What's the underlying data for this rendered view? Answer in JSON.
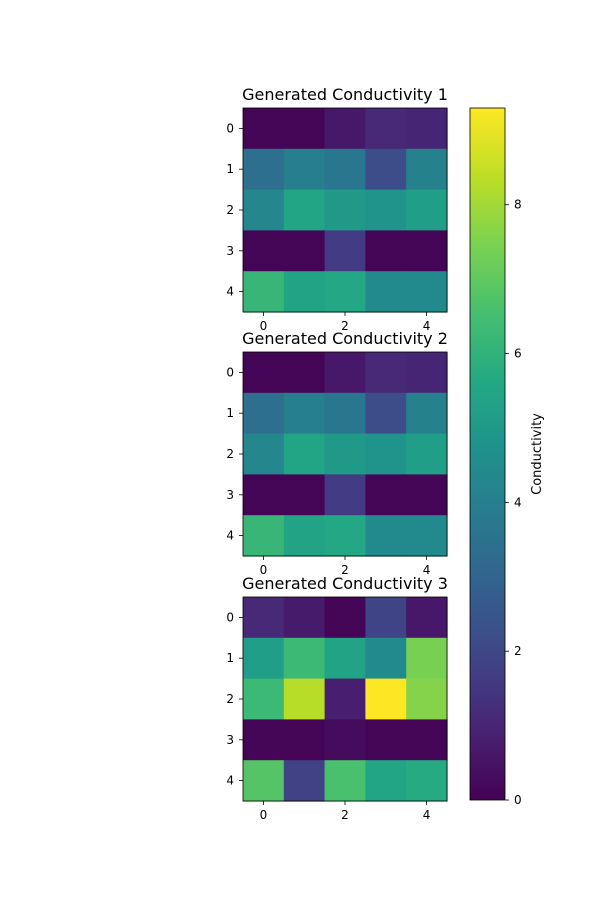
{
  "chart_data": {
    "type": "heatmap",
    "colormap": "viridis",
    "value_range": [
      0,
      9.3
    ],
    "colorbar": {
      "label": "Conductivity",
      "ticks": [
        0,
        2,
        4,
        6,
        8
      ],
      "tick_labels": [
        "0",
        "2",
        "4",
        "6",
        "8"
      ]
    },
    "panels": [
      {
        "title": "Generated Conductivity 1",
        "xticks": [
          0,
          2,
          4
        ],
        "xtick_labels": [
          "0",
          "2",
          "4"
        ],
        "yticks": [
          0,
          1,
          2,
          3,
          4
        ],
        "ytick_labels": [
          "0",
          "1",
          "2",
          "3",
          "4"
        ],
        "values": [
          [
            0.1,
            0.1,
            0.6,
            1.1,
            1.0
          ],
          [
            3.4,
            4.0,
            3.7,
            2.2,
            4.1
          ],
          [
            4.3,
            5.5,
            5.0,
            4.8,
            5.2
          ],
          [
            0.1,
            0.1,
            1.6,
            0.1,
            0.1
          ],
          [
            6.2,
            5.4,
            5.6,
            4.4,
            4.4
          ]
        ]
      },
      {
        "title": "Generated Conductivity 2",
        "xticks": [
          0,
          2,
          4
        ],
        "xtick_labels": [
          "0",
          "2",
          "4"
        ],
        "yticks": [
          0,
          1,
          2,
          3,
          4
        ],
        "ytick_labels": [
          "0",
          "1",
          "2",
          "3",
          "4"
        ],
        "values": [
          [
            0.1,
            0.1,
            0.6,
            1.1,
            1.0
          ],
          [
            3.4,
            4.0,
            3.7,
            2.2,
            4.1
          ],
          [
            4.3,
            5.5,
            5.0,
            4.8,
            5.2
          ],
          [
            0.1,
            0.1,
            1.6,
            0.1,
            0.1
          ],
          [
            6.2,
            5.4,
            5.6,
            4.4,
            4.4
          ]
        ]
      },
      {
        "title": "Generated Conductivity 3",
        "xticks": [
          0,
          2,
          4
        ],
        "xtick_labels": [
          "0",
          "2",
          "4"
        ],
        "yticks": [
          0,
          1,
          2,
          3,
          4
        ],
        "ytick_labels": [
          "0",
          "1",
          "2",
          "3",
          "4"
        ],
        "values": [
          [
            1.1,
            0.7,
            0.1,
            1.9,
            0.6
          ],
          [
            5.2,
            6.3,
            5.4,
            4.4,
            7.4
          ],
          [
            6.3,
            8.3,
            0.8,
            9.3,
            7.6
          ],
          [
            0.1,
            0.1,
            0.3,
            0.1,
            0.1
          ],
          [
            6.8,
            1.8,
            6.6,
            5.5,
            5.7
          ]
        ]
      }
    ]
  }
}
